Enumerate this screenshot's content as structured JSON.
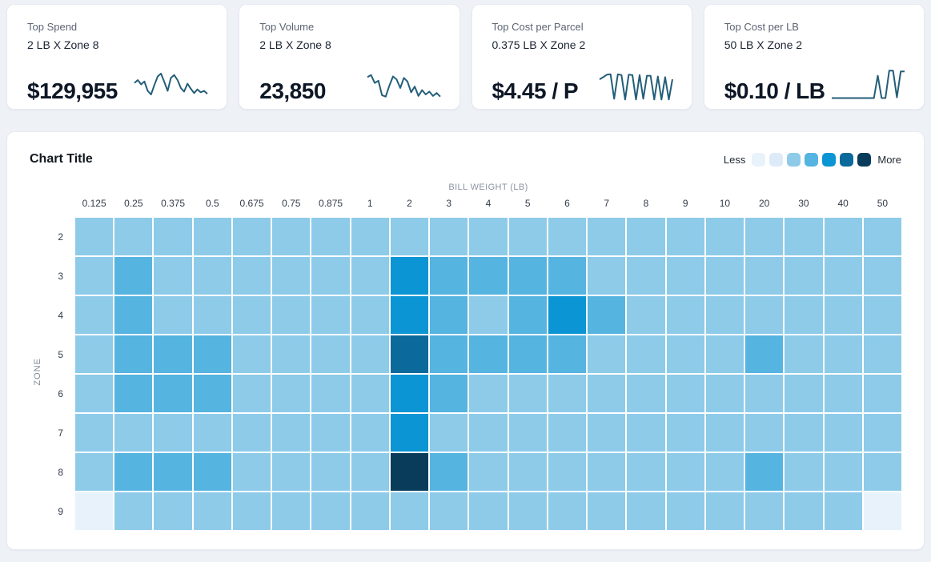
{
  "colors": {
    "scale": [
      "#e8f2fb",
      "#ddebf8",
      "#8dcbe9",
      "#55b4e0",
      "#0c95d4",
      "#0b6a9b",
      "#083c5a"
    ],
    "spark_stroke": "#235e79"
  },
  "kpi_cards": [
    {
      "label": "Top Spend",
      "subtitle": "2 LB X Zone 8",
      "value": "$129,955"
    },
    {
      "label": "Top Volume",
      "subtitle": "2 LB X Zone 8",
      "value": "23,850"
    },
    {
      "label": "Top Cost per Parcel",
      "subtitle": "0.375 LB X Zone 2",
      "value": "$4.45 / P"
    },
    {
      "label": "Top Cost per LB",
      "subtitle": "50 LB X Zone 2",
      "value": "$0.10 / LB"
    }
  ],
  "chart": {
    "title": "Chart Title",
    "legend": {
      "less_label": "Less",
      "more_label": "More"
    }
  },
  "chart_data": [
    {
      "type": "heatmap",
      "title": "Chart Title",
      "xlabel": "BILL WEIGHT (LB)",
      "ylabel": "ZONE",
      "x_categories": [
        "0.125",
        "0.25",
        "0.375",
        "0.5",
        "0.675",
        "0.75",
        "0.875",
        "1",
        "2",
        "3",
        "4",
        "5",
        "6",
        "7",
        "8",
        "9",
        "10",
        "20",
        "30",
        "40",
        "50"
      ],
      "y_categories": [
        "2",
        "3",
        "4",
        "5",
        "6",
        "7",
        "8",
        "9"
      ],
      "legend_note": "7-step intensity scale from Less (index 0) to More (index 6); cell values below are indices into colors.scale",
      "cells": [
        [
          2,
          2,
          2,
          2,
          2,
          2,
          2,
          2,
          2,
          2,
          2,
          2,
          2,
          2,
          2,
          2,
          2,
          2,
          2,
          2,
          2
        ],
        [
          2,
          3,
          2,
          2,
          2,
          2,
          2,
          2,
          4,
          3,
          3,
          3,
          3,
          2,
          2,
          2,
          2,
          2,
          2,
          2,
          2
        ],
        [
          2,
          3,
          2,
          2,
          2,
          2,
          2,
          2,
          4,
          3,
          2,
          3,
          4,
          3,
          2,
          2,
          2,
          2,
          2,
          2,
          2
        ],
        [
          2,
          3,
          3,
          3,
          2,
          2,
          2,
          2,
          5,
          3,
          3,
          3,
          3,
          2,
          2,
          2,
          2,
          3,
          2,
          2,
          2
        ],
        [
          2,
          3,
          3,
          3,
          2,
          2,
          2,
          2,
          4,
          3,
          2,
          2,
          2,
          2,
          2,
          2,
          2,
          2,
          2,
          2,
          2
        ],
        [
          2,
          2,
          2,
          2,
          2,
          2,
          2,
          2,
          4,
          2,
          2,
          2,
          2,
          2,
          2,
          2,
          2,
          2,
          2,
          2,
          2
        ],
        [
          2,
          3,
          3,
          3,
          2,
          2,
          2,
          2,
          6,
          3,
          2,
          2,
          2,
          2,
          2,
          2,
          2,
          3,
          2,
          2,
          2
        ],
        [
          0,
          2,
          2,
          2,
          2,
          2,
          2,
          2,
          2,
          2,
          2,
          2,
          2,
          2,
          2,
          2,
          2,
          2,
          2,
          2,
          0
        ]
      ]
    },
    {
      "type": "line",
      "name": "Top Spend sparkline",
      "values": [
        52,
        60,
        48,
        56,
        30,
        20,
        46,
        70,
        78,
        55,
        30,
        66,
        74,
        60,
        38,
        28,
        50,
        36,
        24,
        34,
        26,
        30,
        22
      ]
    },
    {
      "type": "line",
      "name": "Top Volume sparkline",
      "values": [
        68,
        74,
        52,
        58,
        18,
        14,
        44,
        70,
        62,
        38,
        66,
        56,
        26,
        42,
        16,
        32,
        20,
        28,
        16,
        24,
        14
      ]
    },
    {
      "type": "line",
      "name": "Top Cost per Parcel sparkline",
      "values": [
        62,
        68,
        75,
        76,
        8,
        76,
        74,
        6,
        75,
        74,
        6,
        74,
        8,
        72,
        72,
        6,
        70,
        6,
        68,
        6,
        62
      ]
    },
    {
      "type": "line",
      "name": "Top Cost per LB sparkline",
      "values": [
        10,
        10,
        10,
        10,
        10,
        10,
        10,
        10,
        10,
        10,
        10,
        10,
        72,
        10,
        10,
        86,
        86,
        12,
        84,
        84
      ]
    }
  ]
}
